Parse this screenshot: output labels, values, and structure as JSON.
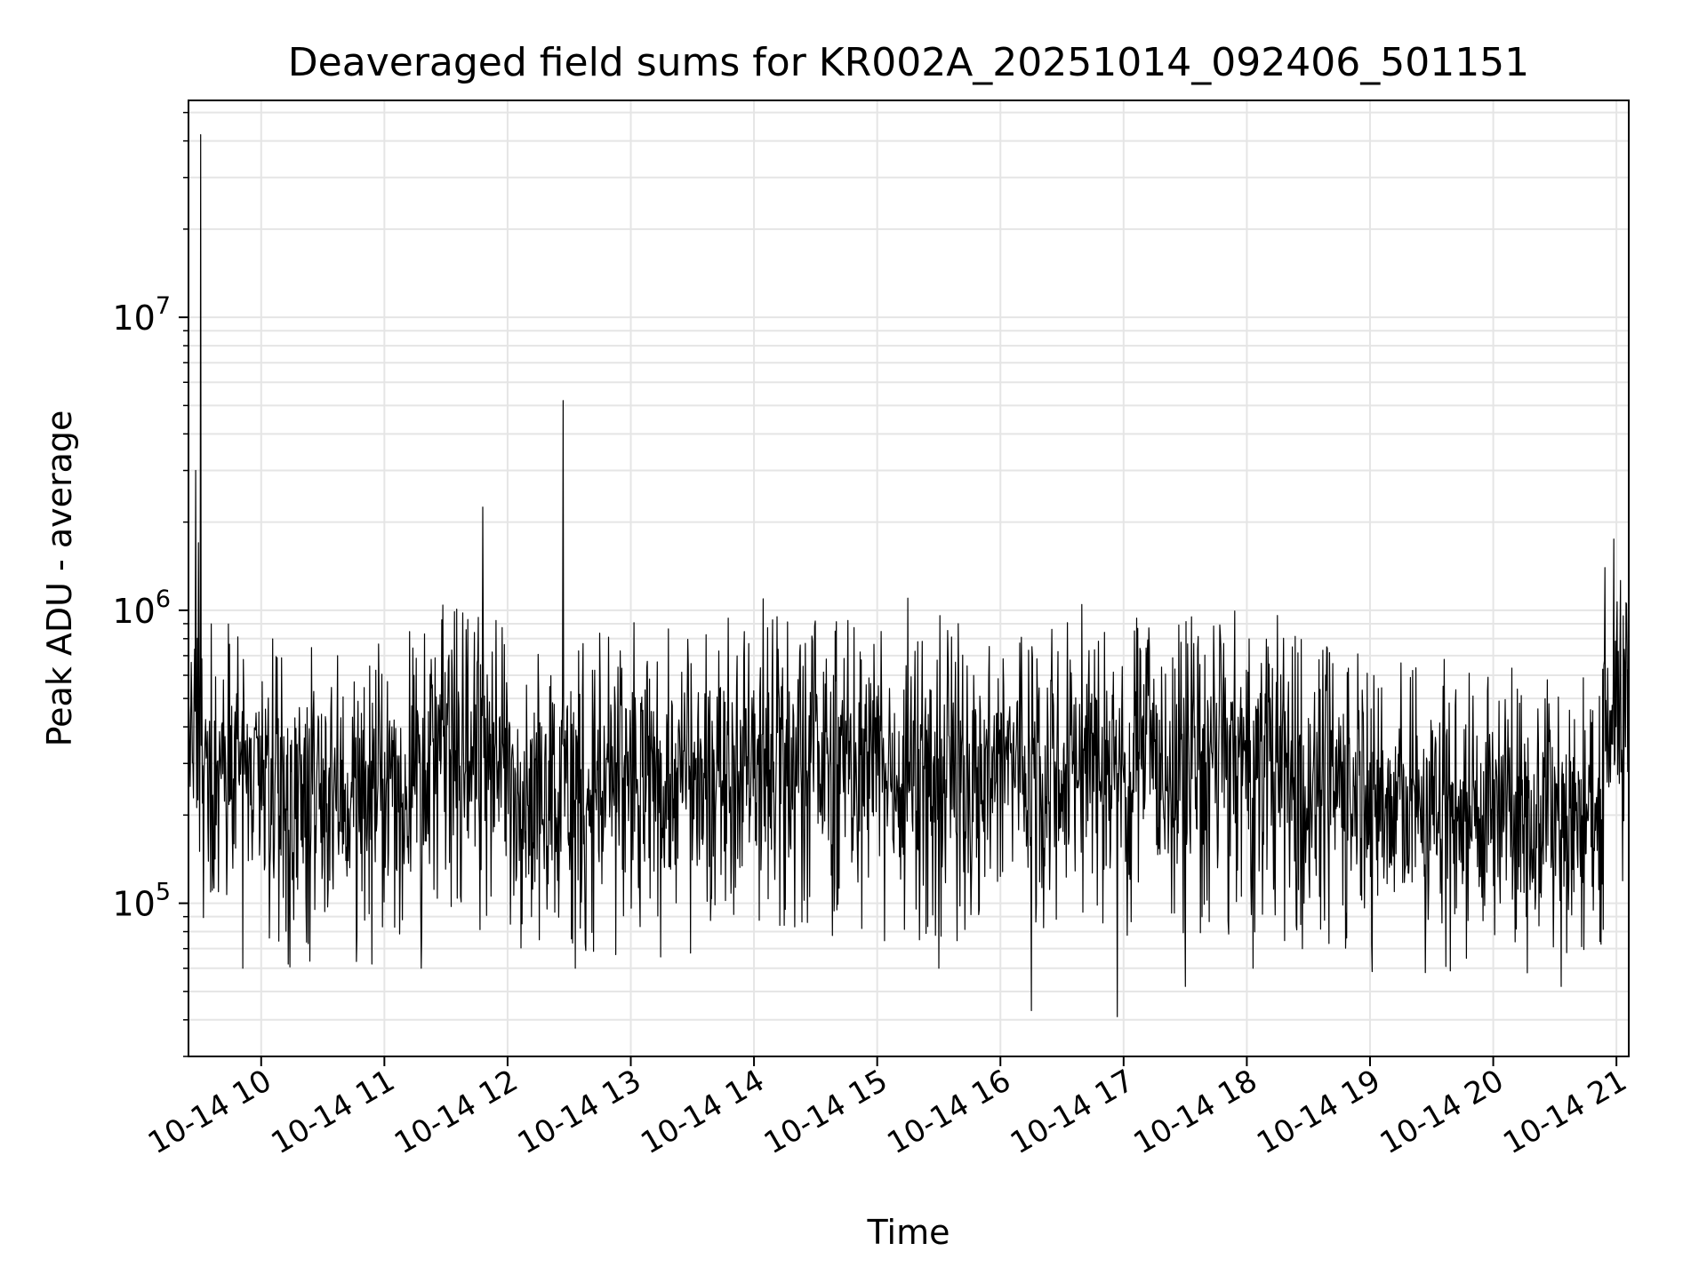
{
  "chart_data": {
    "type": "line",
    "title": "Deaveraged field sums for KR002A_20251014_092406_501151",
    "xlabel": "Time",
    "ylabel": "Peak ADU - average",
    "yscale": "log",
    "xlim": [
      9.41,
      21.1
    ],
    "ylim": [
      30000,
      55000000
    ],
    "grid": true,
    "line_color": "#000000",
    "grid_color": "#e5e5e5",
    "x_ticks": [
      {
        "value": 10,
        "label": "10-14 10"
      },
      {
        "value": 11,
        "label": "10-14 11"
      },
      {
        "value": 12,
        "label": "10-14 12"
      },
      {
        "value": 13,
        "label": "10-14 13"
      },
      {
        "value": 14,
        "label": "10-14 14"
      },
      {
        "value": 15,
        "label": "10-14 15"
      },
      {
        "value": 16,
        "label": "10-14 16"
      },
      {
        "value": 17,
        "label": "10-14 17"
      },
      {
        "value": 18,
        "label": "10-14 18"
      },
      {
        "value": 19,
        "label": "10-14 19"
      },
      {
        "value": 20,
        "label": "10-14 20"
      },
      {
        "value": 21,
        "label": "10-14 21"
      }
    ],
    "y_ticks": [
      {
        "value": 100000,
        "base": "10",
        "exp": "5"
      },
      {
        "value": 1000000,
        "base": "10",
        "exp": "6"
      },
      {
        "value": 10000000,
        "base": "10",
        "exp": "7"
      }
    ],
    "series": [
      {
        "name": "Deaveraged field sum",
        "segments": [
          {
            "x0": 9.41,
            "x1": 9.9,
            "median": 320000
          },
          {
            "x0": 9.9,
            "x1": 11.2,
            "median": 240000
          },
          {
            "x0": 11.2,
            "x1": 12.0,
            "median": 320000
          },
          {
            "x0": 12.0,
            "x1": 12.6,
            "median": 250000
          },
          {
            "x0": 12.6,
            "x1": 13.6,
            "median": 260000
          },
          {
            "x0": 13.6,
            "x1": 14.8,
            "median": 300000
          },
          {
            "x0": 14.8,
            "x1": 16.0,
            "median": 290000
          },
          {
            "x0": 16.0,
            "x1": 18.2,
            "median": 300000
          },
          {
            "x0": 18.2,
            "x1": 19.0,
            "median": 260000
          },
          {
            "x0": 19.0,
            "x1": 20.9,
            "median": 210000
          },
          {
            "x0": 20.9,
            "x1": 21.1,
            "median": 470000
          }
        ],
        "spikes": [
          {
            "x": 9.51,
            "y": 42000000
          },
          {
            "x": 9.47,
            "y": 3000000
          },
          {
            "x": 9.49,
            "y": 1700000
          },
          {
            "x": 11.8,
            "y": 2250000
          },
          {
            "x": 12.45,
            "y": 5200000
          },
          {
            "x": 15.25,
            "y": 1100000
          },
          {
            "x": 17.55,
            "y": 950000
          },
          {
            "x": 18.25,
            "y": 960000
          },
          {
            "x": 20.98,
            "y": 1750000
          },
          {
            "x": 21.08,
            "y": 1050000
          },
          {
            "x": 19.6,
            "y": 680000
          }
        ],
        "dips": [
          {
            "x": 9.85,
            "y": 60000
          },
          {
            "x": 10.22,
            "y": 62000
          },
          {
            "x": 10.9,
            "y": 62000
          },
          {
            "x": 11.3,
            "y": 60000
          },
          {
            "x": 12.55,
            "y": 60000
          },
          {
            "x": 15.5,
            "y": 60000
          },
          {
            "x": 16.25,
            "y": 43000
          },
          {
            "x": 16.95,
            "y": 41000
          },
          {
            "x": 17.5,
            "y": 52000
          },
          {
            "x": 18.05,
            "y": 60000
          },
          {
            "x": 19.45,
            "y": 58000
          },
          {
            "x": 20.55,
            "y": 52000
          }
        ]
      }
    ]
  }
}
